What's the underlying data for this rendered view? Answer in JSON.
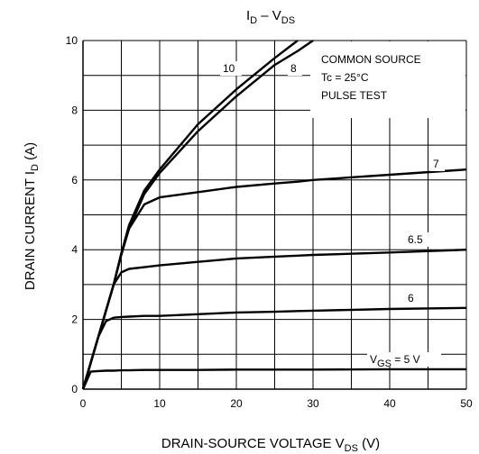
{
  "chart_data": {
    "type": "line",
    "title": [
      "I",
      "D",
      " – V",
      "DS"
    ],
    "ylabel": [
      "DRAIN CURRENT  I",
      "D",
      "  (A)"
    ],
    "xlabel": [
      "DRAIN-SOURCE VOLTAGE  V",
      "DS",
      "  (V)"
    ],
    "annotations": [
      "COMMON SOURCE",
      "Tc = 25°C",
      "PULSE TEST"
    ],
    "x": [
      0,
      1,
      2,
      3,
      4,
      5,
      6,
      8,
      10,
      15,
      20,
      25,
      28,
      30,
      40,
      50
    ],
    "series": [
      {
        "name": "10",
        "color": "#000000",
        "values": [
          0,
          0.75,
          1.5,
          2.25,
          3.0,
          3.9,
          4.7,
          5.7,
          6.3,
          7.6,
          8.6,
          9.5,
          10,
          null,
          null,
          null
        ]
      },
      {
        "name": "8",
        "color": "#000000",
        "values": [
          0,
          0.75,
          1.5,
          2.25,
          3.0,
          3.85,
          4.6,
          5.6,
          6.2,
          7.4,
          8.4,
          9.3,
          9.7,
          10,
          null,
          null
        ]
      },
      {
        "name": "7",
        "color": "#000000",
        "values": [
          0,
          0.75,
          1.5,
          2.25,
          3.0,
          3.9,
          4.6,
          5.3,
          5.5,
          5.65,
          5.8,
          5.9,
          5.95,
          6.0,
          6.15,
          6.3
        ]
      },
      {
        "name": "6.5",
        "color": "#000000",
        "values": [
          0,
          0.75,
          1.5,
          2.25,
          3.0,
          3.35,
          3.45,
          3.5,
          3.55,
          3.65,
          3.75,
          3.8,
          3.83,
          3.85,
          3.92,
          4.0
        ]
      },
      {
        "name": "6",
        "color": "#000000",
        "values": [
          0,
          0.75,
          1.5,
          1.95,
          2.05,
          2.07,
          2.08,
          2.1,
          2.1,
          2.15,
          2.2,
          2.22,
          2.24,
          2.25,
          2.3,
          2.33
        ]
      },
      {
        "name": [
          "V",
          "GS",
          " = 5 V"
        ],
        "color": "#000000",
        "values": [
          0,
          0.5,
          0.52,
          0.53,
          0.53,
          0.54,
          0.54,
          0.55,
          0.55,
          0.55,
          0.56,
          0.56,
          0.56,
          0.56,
          0.57,
          0.57
        ]
      }
    ],
    "xlim": [
      0,
      50
    ],
    "xticks": [
      0,
      10,
      20,
      30,
      40,
      50
    ],
    "x_minor_ticks": [
      5,
      15,
      25,
      35,
      45
    ],
    "ylim": [
      0,
      10
    ],
    "yticks": [
      0,
      2,
      4,
      6,
      8,
      10
    ],
    "y_minor_ticks": [
      1,
      3,
      5,
      7,
      9
    ],
    "grid": true
  }
}
